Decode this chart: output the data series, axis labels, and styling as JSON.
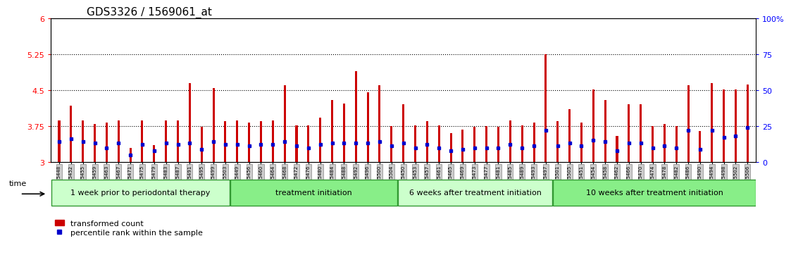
{
  "title": "GDS3326 / 1569061_at",
  "samples": [
    "GSM155448",
    "GSM155452",
    "GSM155455",
    "GSM155459",
    "GSM155463",
    "GSM155467",
    "GSM155471",
    "GSM155475",
    "GSM155479",
    "GSM155483",
    "GSM155487",
    "GSM155491",
    "GSM155495",
    "GSM155499",
    "GSM155503",
    "GSM155449",
    "GSM155456",
    "GSM155460",
    "GSM155464",
    "GSM155468",
    "GSM155472",
    "GSM155476",
    "GSM155480",
    "GSM155484",
    "GSM155488",
    "GSM155492",
    "GSM155496",
    "GSM155500",
    "GSM155504",
    "GSM155450",
    "GSM155453",
    "GSM155457",
    "GSM155461",
    "GSM155465",
    "GSM155469",
    "GSM155473",
    "GSM155477",
    "GSM155481",
    "GSM155485",
    "GSM155489",
    "GSM155493",
    "GSM155497",
    "GSM155501",
    "GSM155505",
    "GSM155451",
    "GSM155454",
    "GSM155458",
    "GSM155462",
    "GSM155466",
    "GSM155470",
    "GSM155474",
    "GSM155478",
    "GSM155482",
    "GSM155486",
    "GSM155490",
    "GSM155494",
    "GSM155498",
    "GSM155502",
    "GSM155506"
  ],
  "red_values": [
    3.87,
    4.18,
    3.87,
    3.8,
    3.83,
    3.87,
    3.3,
    3.87,
    3.35,
    3.87,
    3.87,
    4.65,
    3.73,
    4.55,
    3.85,
    3.87,
    3.82,
    3.85,
    3.87,
    4.6,
    3.77,
    3.77,
    3.93,
    4.3,
    4.22,
    4.9,
    4.45,
    4.6,
    3.75,
    4.2,
    3.77,
    3.85,
    3.77,
    3.6,
    3.68,
    3.73,
    3.75,
    3.73,
    3.87,
    3.77,
    3.83,
    5.25,
    3.85,
    4.1,
    3.83,
    4.52,
    4.3,
    3.55,
    4.2,
    4.2,
    3.75,
    3.8,
    3.75,
    4.6,
    3.65,
    4.65,
    4.52,
    4.52,
    4.62
  ],
  "blue_values_pct": [
    14,
    16,
    14,
    13,
    10,
    13,
    5,
    12,
    8,
    13,
    12,
    13,
    9,
    14,
    12,
    12,
    11,
    12,
    12,
    14,
    11,
    10,
    12,
    13,
    13,
    13,
    13,
    14,
    11,
    13,
    10,
    12,
    10,
    8,
    9,
    10,
    10,
    10,
    12,
    10,
    11,
    22,
    11,
    13,
    11,
    15,
    14,
    8,
    13,
    13,
    10,
    11,
    10,
    22,
    9,
    22,
    17,
    18,
    24
  ],
  "groups": [
    {
      "label": "1 week prior to periodontal therapy",
      "start": 0,
      "end": 15,
      "color": "#ccffcc"
    },
    {
      "label": "treatment initiation",
      "start": 15,
      "end": 29,
      "color": "#88ee88"
    },
    {
      "label": "6 weeks after treatment initiation",
      "start": 29,
      "end": 42,
      "color": "#ccffcc"
    },
    {
      "label": "10 weeks after treatment initiation",
      "start": 42,
      "end": 59,
      "color": "#88ee88"
    }
  ],
  "ylim_left": [
    3.0,
    6.0
  ],
  "ylim_right": [
    0,
    100
  ],
  "yticks_left": [
    3.0,
    3.75,
    4.5,
    5.25,
    6.0
  ],
  "yticks_left_labels": [
    "3",
    "3.75",
    "4.5",
    "5.25",
    "6"
  ],
  "yticks_right": [
    0,
    25,
    50,
    75,
    100
  ],
  "yticks_right_labels": [
    "0",
    "25",
    "50",
    "75",
    "100%"
  ],
  "hlines": [
    3.75,
    4.5,
    5.25
  ],
  "bar_color": "#cc0000",
  "dot_color": "#0000cc",
  "baseline": 3.0,
  "tick_label_bg": "#cccccc",
  "tick_label_edge": "#888888"
}
